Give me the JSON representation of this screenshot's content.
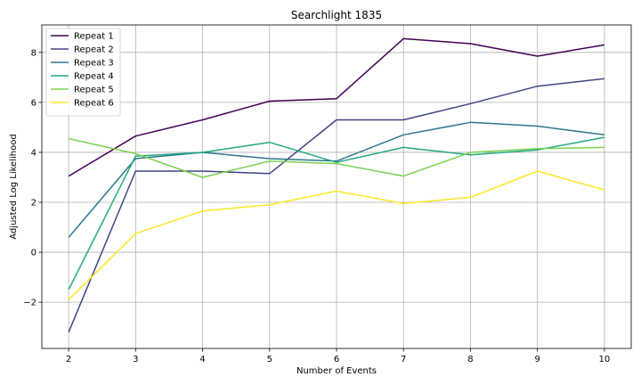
{
  "chart_data": {
    "type": "line",
    "title": "Searchlight 1835",
    "xlabel": "Number of Events",
    "ylabel": "Adjusted Log Likelihood",
    "x": [
      2,
      3,
      4,
      5,
      6,
      7,
      8,
      9,
      10
    ],
    "xticks": [
      "2",
      "3",
      "4",
      "5",
      "6",
      "7",
      "8",
      "9",
      "10"
    ],
    "yticks": [
      -2,
      0,
      2,
      4,
      6,
      8
    ],
    "ytick_labels": [
      "−2",
      "0",
      "2",
      "4",
      "6",
      "8"
    ],
    "xlim": [
      1.6,
      10.4
    ],
    "ylim": [
      -3.85,
      9.1
    ],
    "grid": true,
    "legend_position": "top-left",
    "series": [
      {
        "name": "Repeat 1",
        "color": "#440154",
        "values": [
          3.05,
          4.65,
          5.3,
          6.05,
          6.15,
          8.55,
          8.35,
          7.85,
          8.3
        ]
      },
      {
        "name": "Repeat 2",
        "color": "#414487",
        "values": [
          -3.2,
          3.25,
          3.25,
          3.15,
          5.3,
          5.3,
          5.95,
          6.65,
          6.95
        ]
      },
      {
        "name": "Repeat 3",
        "color": "#2a788e",
        "values": [
          0.6,
          3.75,
          4.0,
          3.75,
          3.65,
          4.7,
          5.2,
          5.05,
          4.7
        ]
      },
      {
        "name": "Repeat 4",
        "color": "#22a884",
        "values": [
          -1.5,
          3.85,
          4.0,
          4.4,
          3.6,
          4.2,
          3.9,
          4.1,
          4.6
        ]
      },
      {
        "name": "Repeat 5",
        "color": "#7ad151",
        "values": [
          4.55,
          3.95,
          3.0,
          3.65,
          3.55,
          3.05,
          4.0,
          4.15,
          4.2
        ]
      },
      {
        "name": "Repeat 6",
        "color": "#fde725",
        "values": [
          -1.9,
          0.75,
          1.65,
          1.9,
          2.45,
          1.95,
          2.2,
          3.25,
          2.5
        ]
      }
    ]
  }
}
